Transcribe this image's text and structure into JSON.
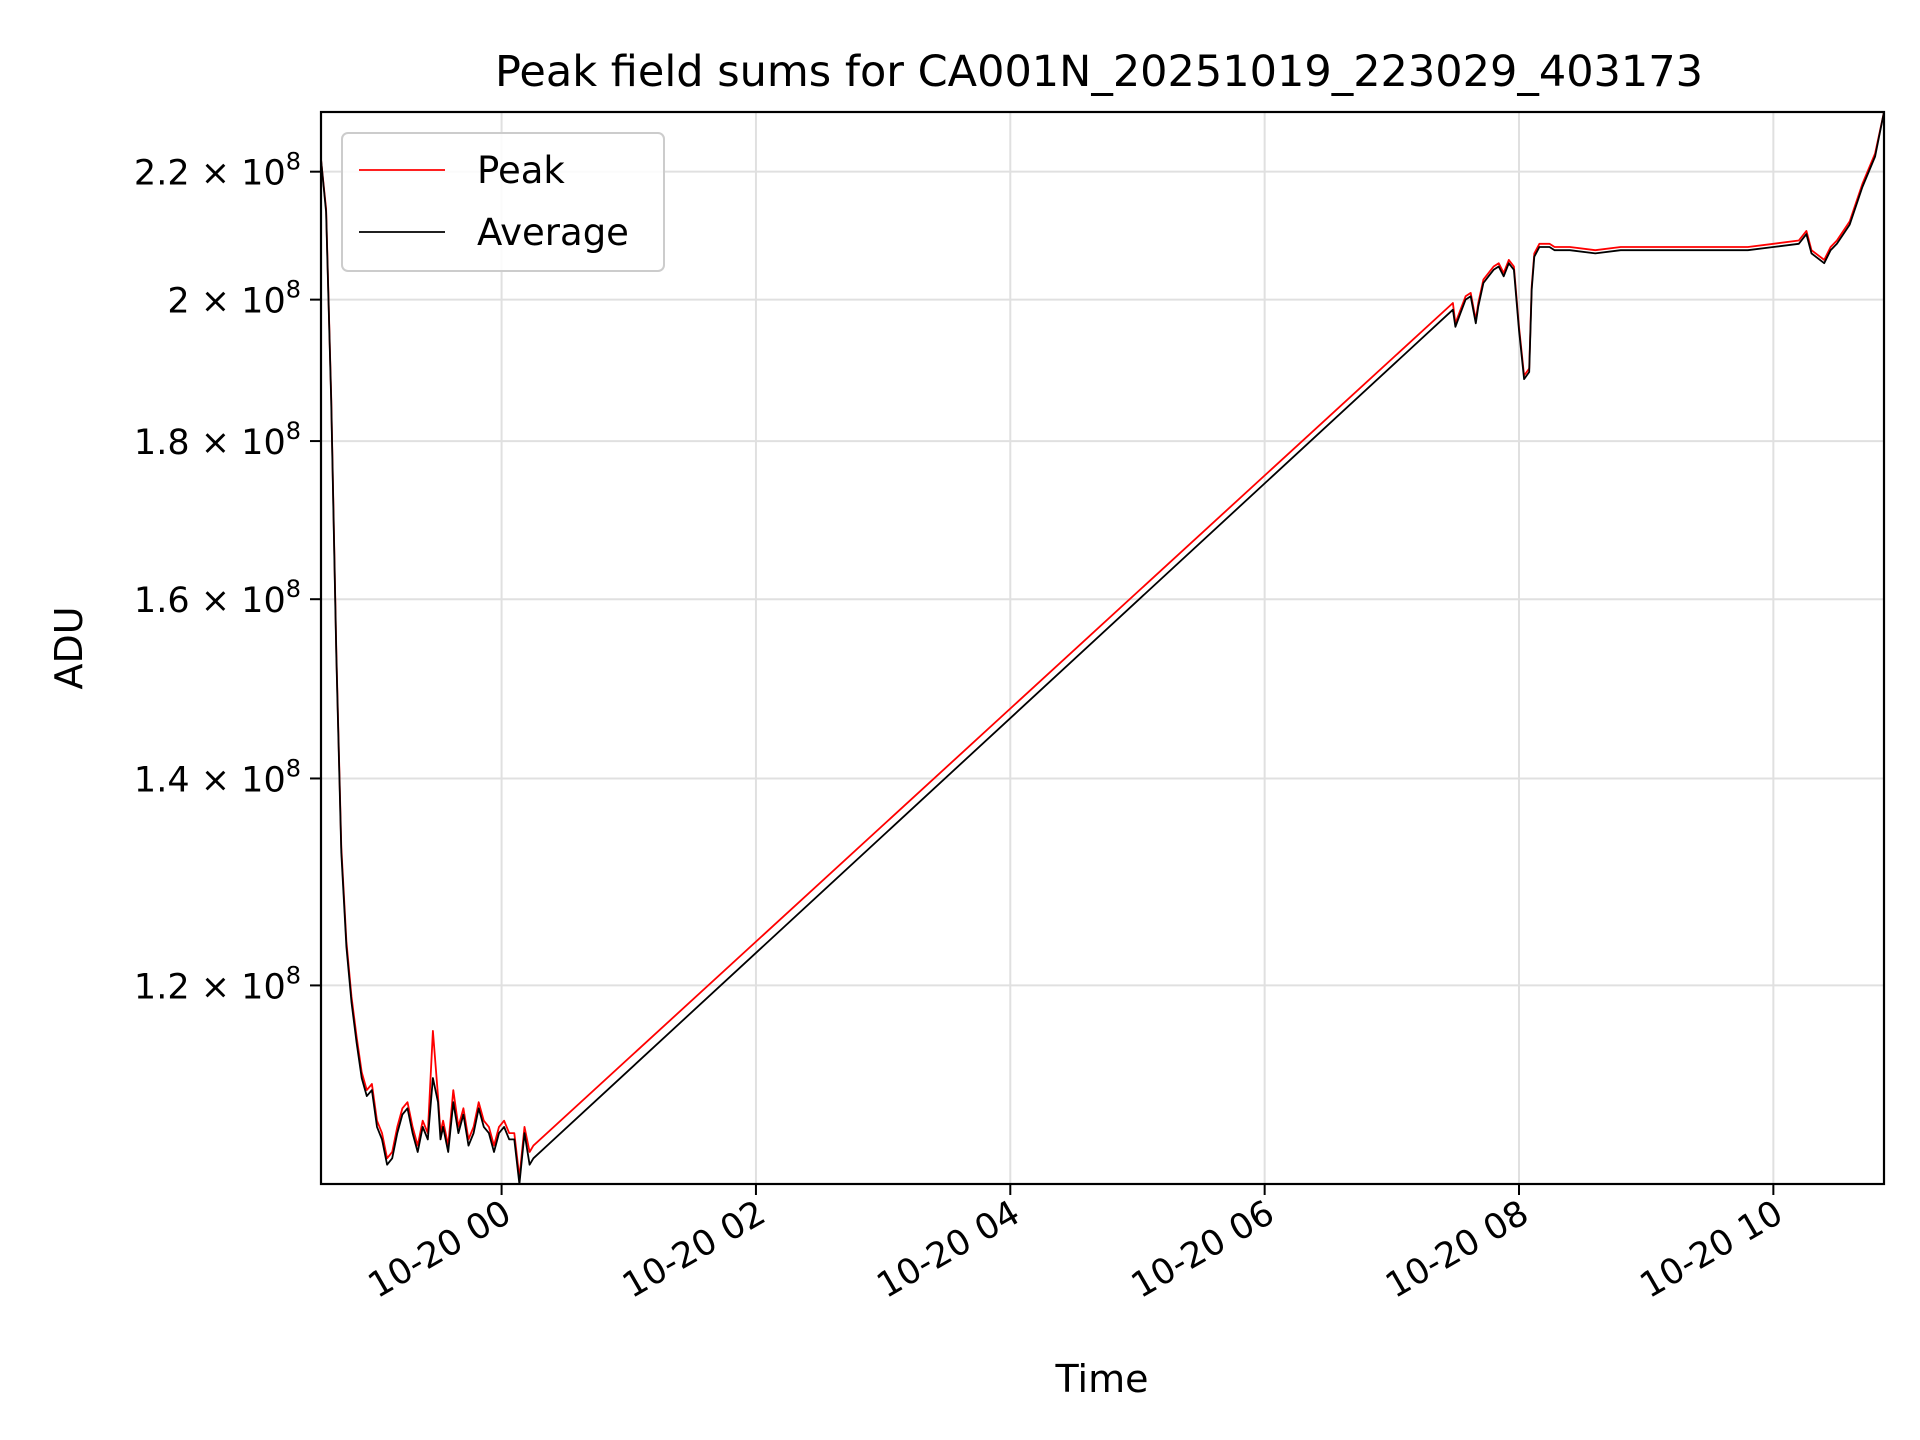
{
  "chart_data": {
    "type": "line",
    "title": "Peak field sums for CA001N_20251019_223029_403173",
    "xlabel": "Time",
    "ylabel": "ADU",
    "y_scale": "log",
    "ylim": [
      103500000,
      230000000
    ],
    "x_unit": "hours since 2025-10-19 00:00",
    "xlim": [
      22.58,
      34.87
    ],
    "grid": true,
    "legend_position": "top-left",
    "x_ticks": [
      {
        "value": 24,
        "label": "10-20 00"
      },
      {
        "value": 26,
        "label": "10-20 02"
      },
      {
        "value": 28,
        "label": "10-20 04"
      },
      {
        "value": 30,
        "label": "10-20 06"
      },
      {
        "value": 32,
        "label": "10-20 08"
      },
      {
        "value": 34,
        "label": "10-20 10"
      }
    ],
    "y_ticks": [
      {
        "value": 120000000,
        "mantissa": "1.2",
        "base": "10",
        "exponent": "8"
      },
      {
        "value": 140000000,
        "mantissa": "1.4",
        "base": "10",
        "exponent": "8"
      },
      {
        "value": 160000000,
        "mantissa": "1.6",
        "base": "10",
        "exponent": "8"
      },
      {
        "value": 180000000,
        "mantissa": "1.8",
        "base": "10",
        "exponent": "8"
      },
      {
        "value": 200000000,
        "mantissa": "2",
        "base": "10",
        "exponent": "8"
      },
      {
        "value": 220000000,
        "mantissa": "2.2",
        "base": "10",
        "exponent": "8"
      }
    ],
    "times_symbol": "×",
    "series": [
      {
        "name": "Peak",
        "color": "#ff0000",
        "x": [
          22.58,
          22.62,
          22.66,
          22.7,
          22.74,
          22.78,
          22.82,
          22.86,
          22.9,
          22.94,
          22.98,
          23.02,
          23.06,
          23.1,
          23.14,
          23.18,
          23.22,
          23.26,
          23.3,
          23.34,
          23.38,
          23.42,
          23.46,
          23.5,
          23.52,
          23.54,
          23.58,
          23.62,
          23.66,
          23.7,
          23.74,
          23.78,
          23.82,
          23.86,
          23.9,
          23.94,
          23.98,
          24.02,
          24.06,
          24.1,
          24.14,
          24.18,
          24.22,
          24.25,
          31.48,
          31.5,
          31.54,
          31.58,
          31.62,
          31.66,
          31.68,
          31.72,
          31.76,
          31.8,
          31.84,
          31.88,
          31.92,
          31.96,
          32.0,
          32.04,
          32.08,
          32.1,
          32.12,
          32.16,
          32.2,
          32.24,
          32.28,
          32.4,
          32.6,
          32.8,
          33.0,
          33.2,
          33.4,
          33.6,
          33.8,
          34.0,
          34.2,
          34.26,
          34.3,
          34.4,
          34.45,
          34.5,
          34.6,
          34.7,
          34.8,
          34.87
        ],
        "values": [
          222000000,
          214000000,
          186000000,
          154000000,
          133000000,
          124000000,
          119000000,
          115500000,
          112500000,
          111000000,
          111500000,
          108500000,
          107500000,
          105500000,
          106000000,
          108000000,
          109500000,
          110000000,
          108000000,
          106500000,
          108500000,
          107500000,
          116000000,
          110500000,
          107500000,
          108500000,
          106500000,
          111000000,
          108000000,
          109500000,
          107000000,
          108000000,
          110000000,
          108500000,
          108000000,
          106500000,
          108000000,
          108500000,
          107500000,
          107500000,
          104000000,
          108000000,
          106000000,
          106500000,
          199500000,
          196500000,
          198500000,
          200500000,
          201000000,
          197000000,
          199500000,
          203000000,
          204000000,
          205000000,
          205500000,
          204000000,
          206000000,
          205000000,
          196000000,
          189000000,
          190000000,
          202000000,
          207000000,
          208500000,
          208500000,
          208500000,
          208000000,
          208000000,
          207500000,
          208000000,
          208000000,
          208000000,
          208000000,
          208000000,
          208000000,
          208500000,
          209000000,
          210500000,
          207500000,
          206000000,
          208000000,
          209000000,
          212000000,
          218000000,
          223000000,
          230000000
        ]
      },
      {
        "name": "Average",
        "color": "#000000",
        "x": [
          22.58,
          22.62,
          22.66,
          22.7,
          22.74,
          22.78,
          22.82,
          22.86,
          22.9,
          22.94,
          22.98,
          23.02,
          23.06,
          23.1,
          23.14,
          23.18,
          23.22,
          23.26,
          23.3,
          23.34,
          23.38,
          23.42,
          23.46,
          23.5,
          23.52,
          23.54,
          23.58,
          23.62,
          23.66,
          23.7,
          23.74,
          23.78,
          23.82,
          23.86,
          23.9,
          23.94,
          23.98,
          24.02,
          24.06,
          24.1,
          24.14,
          24.18,
          24.22,
          24.25,
          31.48,
          31.5,
          31.54,
          31.58,
          31.62,
          31.66,
          31.68,
          31.72,
          31.76,
          31.8,
          31.84,
          31.88,
          31.92,
          31.96,
          32.0,
          32.04,
          32.08,
          32.1,
          32.12,
          32.16,
          32.2,
          32.24,
          32.28,
          32.4,
          32.6,
          32.8,
          33.0,
          33.2,
          33.4,
          33.6,
          33.8,
          34.0,
          34.2,
          34.26,
          34.3,
          34.4,
          34.45,
          34.5,
          34.6,
          34.7,
          34.8,
          34.87
        ],
        "values": [
          222000000,
          213500000,
          185500000,
          153500000,
          132500000,
          123500000,
          118500000,
          115000000,
          112000000,
          110500000,
          111000000,
          108000000,
          107000000,
          105000000,
          105500000,
          107500000,
          109000000,
          109500000,
          107500000,
          106000000,
          108000000,
          107000000,
          112000000,
          110000000,
          107000000,
          108000000,
          106000000,
          110000000,
          107500000,
          109000000,
          106500000,
          107500000,
          109500000,
          108000000,
          107500000,
          106000000,
          107500000,
          108000000,
          107000000,
          107000000,
          103500000,
          107500000,
          105000000,
          105500000,
          198500000,
          196000000,
          198000000,
          200000000,
          200500000,
          196500000,
          199000000,
          202500000,
          203500000,
          204500000,
          205000000,
          203500000,
          205500000,
          204500000,
          195500000,
          188500000,
          189500000,
          201500000,
          206500000,
          208000000,
          208000000,
          208000000,
          207500000,
          207500000,
          207000000,
          207500000,
          207500000,
          207500000,
          207500000,
          207500000,
          207500000,
          208000000,
          208500000,
          210000000,
          207000000,
          205500000,
          207500000,
          208500000,
          211500000,
          217500000,
          222500000,
          230000000
        ]
      }
    ]
  }
}
